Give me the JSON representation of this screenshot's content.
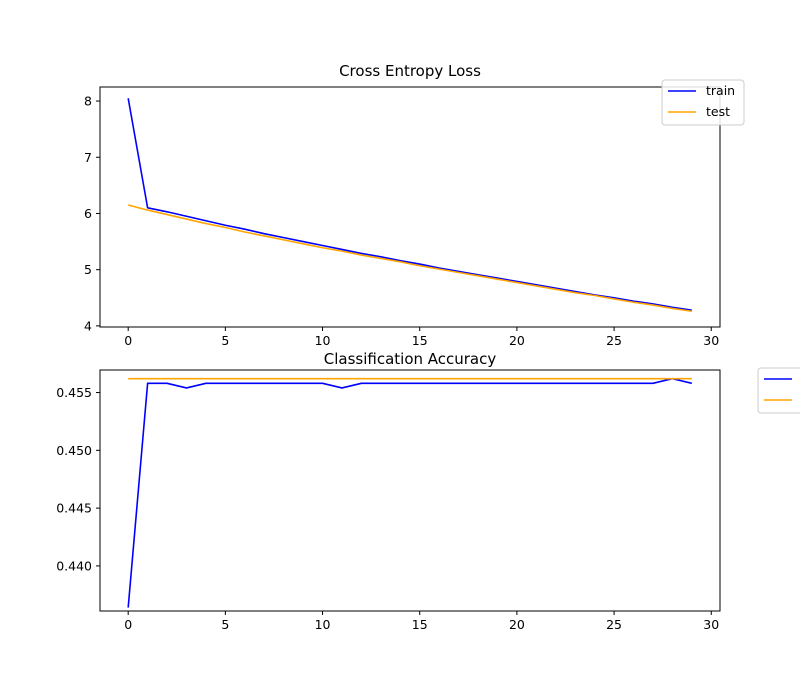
{
  "chart_data": [
    {
      "type": "line",
      "title": "Cross Entropy Loss",
      "xlabel": "",
      "ylabel": "",
      "xlim": [
        -1.45,
        30.45
      ],
      "ylim": [
        3.98,
        8.25
      ],
      "xticks": [
        0,
        5,
        10,
        15,
        20,
        25,
        30
      ],
      "yticks": [
        4,
        5,
        6,
        7,
        8
      ],
      "ytick_format": "int",
      "grid": false,
      "legend": "top-right",
      "series": [
        {
          "name": "train",
          "color": "#0000ff",
          "x": [
            0,
            1,
            2,
            3,
            4,
            5,
            6,
            7,
            8,
            9,
            10,
            11,
            12,
            13,
            14,
            15,
            16,
            17,
            18,
            19,
            20,
            21,
            22,
            23,
            24,
            25,
            26,
            27,
            28,
            29
          ],
          "values": [
            8.05,
            6.1,
            6.03,
            5.95,
            5.87,
            5.79,
            5.72,
            5.64,
            5.57,
            5.5,
            5.43,
            5.36,
            5.29,
            5.23,
            5.16,
            5.1,
            5.03,
            4.97,
            4.91,
            4.85,
            4.79,
            4.73,
            4.67,
            4.61,
            4.55,
            4.5,
            4.44,
            4.39,
            4.33,
            4.28
          ]
        },
        {
          "name": "test",
          "color": "#ffa500",
          "x": [
            0,
            1,
            2,
            3,
            4,
            5,
            6,
            7,
            8,
            9,
            10,
            11,
            12,
            13,
            14,
            15,
            16,
            17,
            18,
            19,
            20,
            21,
            22,
            23,
            24,
            25,
            26,
            27,
            28,
            29
          ],
          "values": [
            6.15,
            6.06,
            5.98,
            5.9,
            5.82,
            5.75,
            5.67,
            5.6,
            5.53,
            5.46,
            5.39,
            5.33,
            5.26,
            5.2,
            5.14,
            5.07,
            5.01,
            4.95,
            4.89,
            4.83,
            4.77,
            4.71,
            4.65,
            4.59,
            4.54,
            4.48,
            4.42,
            4.37,
            4.31,
            4.26
          ]
        }
      ]
    },
    {
      "type": "line",
      "title": "Classification Accuracy",
      "xlabel": "",
      "ylabel": "",
      "xlim": [
        -1.45,
        30.45
      ],
      "ylim": [
        0.4361,
        0.45695
      ],
      "xticks": [
        0,
        5,
        10,
        15,
        20,
        25,
        30
      ],
      "yticks": [
        0.44,
        0.445,
        0.45,
        0.455
      ],
      "ytick_format": "3dp",
      "grid": false,
      "legend": "outside-right",
      "series": [
        {
          "color": "#0000ff",
          "x": [
            0,
            1,
            2,
            3,
            4,
            5,
            6,
            7,
            8,
            9,
            10,
            11,
            12,
            13,
            14,
            15,
            16,
            17,
            18,
            19,
            20,
            21,
            22,
            23,
            24,
            25,
            26,
            27,
            28,
            29
          ],
          "values": [
            0.4364,
            0.4558,
            0.4558,
            0.4554,
            0.4558,
            0.4558,
            0.4558,
            0.4558,
            0.4558,
            0.4558,
            0.4558,
            0.4554,
            0.4558,
            0.4558,
            0.4558,
            0.4558,
            0.4558,
            0.4558,
            0.4558,
            0.4558,
            0.4558,
            0.4558,
            0.4558,
            0.4558,
            0.4558,
            0.4558,
            0.4558,
            0.4558,
            0.4562,
            0.4558
          ]
        },
        {
          "color": "#ffa500",
          "x": [
            0,
            1,
            2,
            3,
            4,
            5,
            6,
            7,
            8,
            9,
            10,
            11,
            12,
            13,
            14,
            15,
            16,
            17,
            18,
            19,
            20,
            21,
            22,
            23,
            24,
            25,
            26,
            27,
            28,
            29
          ],
          "values": [
            0.4562,
            0.4562,
            0.4562,
            0.4562,
            0.4562,
            0.4562,
            0.4562,
            0.4562,
            0.4562,
            0.4562,
            0.4562,
            0.4562,
            0.4562,
            0.4562,
            0.4562,
            0.4562,
            0.4562,
            0.4562,
            0.4562,
            0.4562,
            0.4562,
            0.4562,
            0.4562,
            0.4562,
            0.4562,
            0.4562,
            0.4562,
            0.4562,
            0.4562,
            0.4562
          ]
        }
      ]
    }
  ]
}
